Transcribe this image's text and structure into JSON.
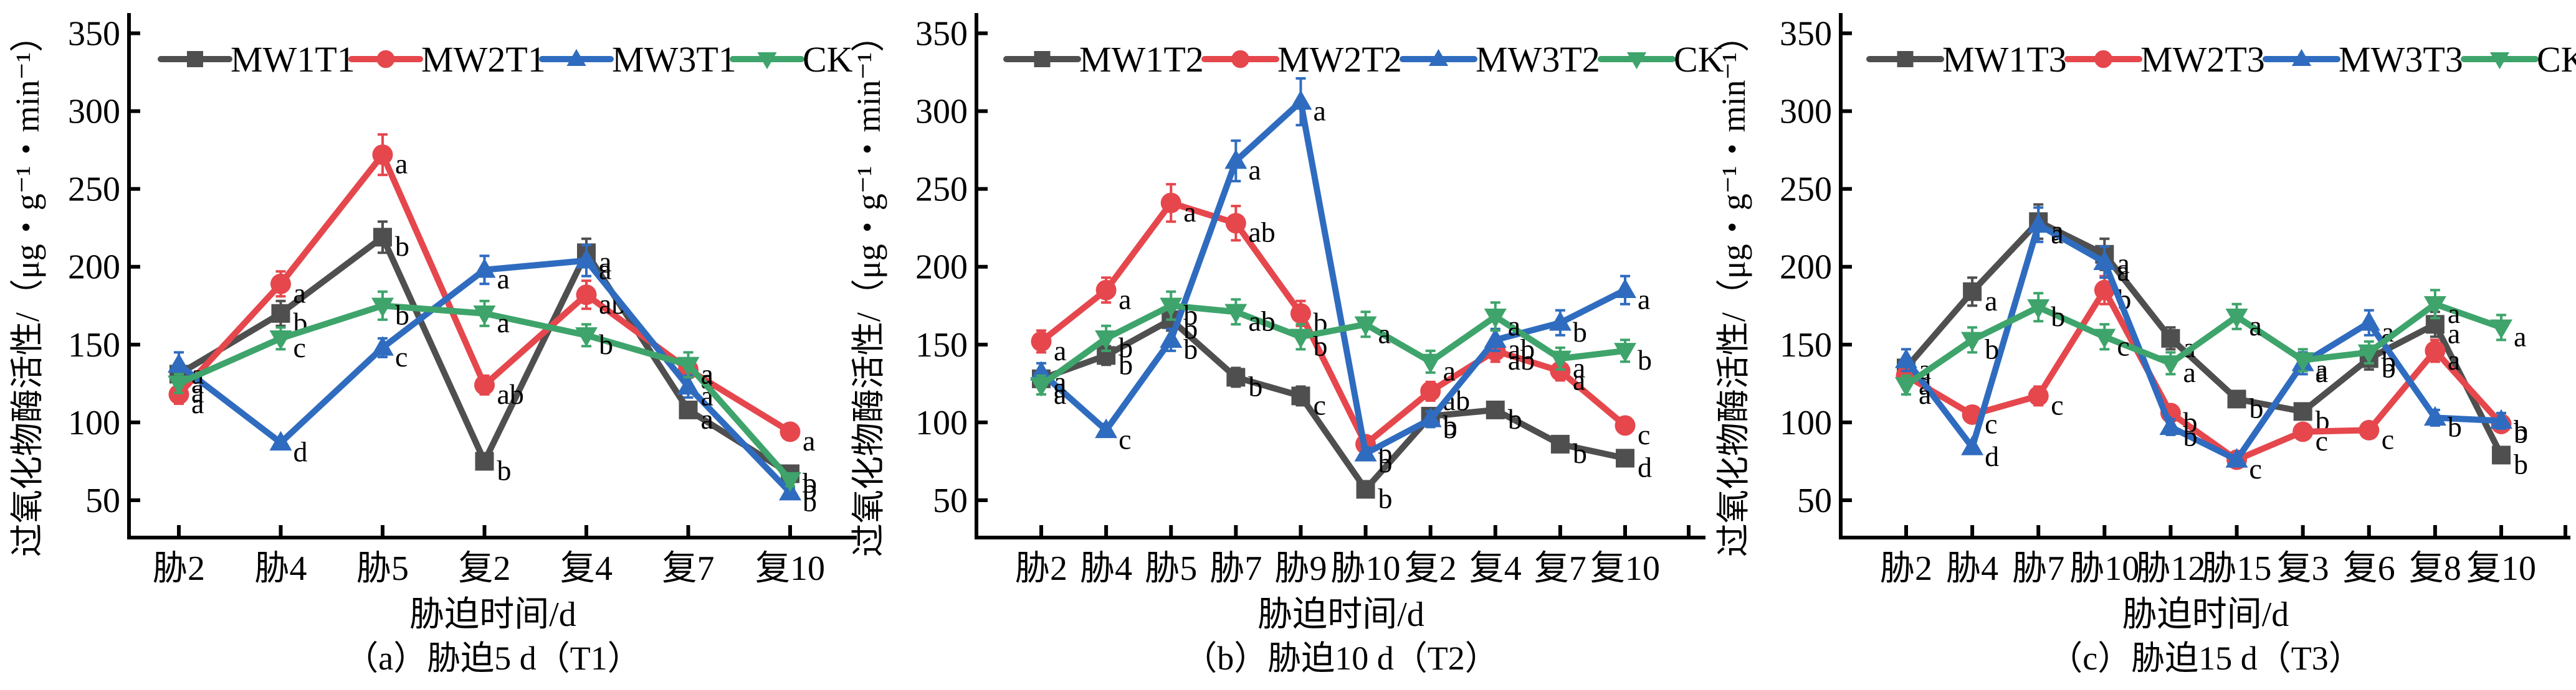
{
  "figure": {
    "colors": {
      "MW1": "#4f4f4f",
      "MW2": "#e5474d",
      "MW3": "#2f6cbf",
      "CK": "#3ea46b",
      "axis": "#000000"
    }
  },
  "chart_data": [
    {
      "type": "line",
      "panel_id": "a",
      "caption": "（a）胁迫5 d（T1）",
      "xlabel": "胁迫时间/d",
      "ylabel": "过氧化物酶活性/（μg・g⁻¹・min⁻¹）",
      "ylim": [
        26,
        363
      ],
      "yticks": [
        50,
        100,
        150,
        200,
        250,
        300,
        350
      ],
      "legend_position": "top",
      "grid": false,
      "categories": [
        "胁2",
        "胁4",
        "胁5",
        "复2",
        "复4",
        "复7",
        "复10"
      ],
      "series": [
        {
          "name": "MW1T1",
          "key": "MW1",
          "marker": "square",
          "values": [
            131,
            170,
            219,
            75,
            209,
            108,
            67
          ],
          "errors": [
            5,
            8,
            10,
            3,
            9,
            5,
            3
          ],
          "letters": [
            "a",
            "b",
            "b",
            "b",
            "a",
            "a",
            "b"
          ]
        },
        {
          "name": "MW2T1",
          "key": "MW2",
          "marker": "circle",
          "values": [
            118,
            189,
            272,
            124,
            182,
            134,
            94
          ],
          "errors": [
            6,
            8,
            13,
            6,
            9,
            5,
            3
          ],
          "letters": [
            "a",
            "a",
            "a",
            "ab",
            "ab",
            "a",
            "a"
          ]
        },
        {
          "name": "MW3T1",
          "key": "MW3",
          "marker": "triangle-up",
          "values": [
            137,
            87,
            148,
            198,
            204,
            123,
            55
          ],
          "errors": [
            8,
            3,
            6,
            9,
            10,
            7,
            3
          ],
          "letters": [
            "a",
            "d",
            "c",
            "a",
            "a",
            "a",
            "b"
          ]
        },
        {
          "name": "CK",
          "key": "CK",
          "marker": "triangle-down",
          "values": [
            125,
            154,
            175,
            170,
            156,
            137,
            63
          ],
          "errors": [
            6,
            7,
            9,
            8,
            7,
            8,
            4
          ],
          "letters": [
            "a",
            "c",
            "b",
            "a",
            "b",
            "a",
            "b"
          ]
        }
      ]
    },
    {
      "type": "line",
      "panel_id": "b",
      "caption": "（b）胁迫10 d（T2）",
      "xlabel": "胁迫时间/d",
      "ylabel": "过氧化物酶活性/（μg・g⁻¹・min⁻¹）",
      "ylim": [
        26,
        363
      ],
      "yticks": [
        50,
        100,
        150,
        200,
        250,
        300,
        350
      ],
      "legend_position": "top",
      "grid": false,
      "categories": [
        "胁2",
        "胁4",
        "胁5",
        "胁7",
        "胁9",
        "胁10",
        "复2",
        "复4",
        "复7",
        "复10"
      ],
      "series": [
        {
          "name": "MW1T2",
          "key": "MW1",
          "marker": "square",
          "values": [
            128,
            143,
            166,
            129,
            117,
            57,
            104,
            108,
            86,
            77
          ],
          "errors": [
            5,
            6,
            7,
            6,
            6,
            3,
            5,
            5,
            4,
            3
          ],
          "letters": [
            "a",
            "b",
            "b",
            "b",
            "c",
            "b",
            "b",
            "b",
            "b",
            "d"
          ]
        },
        {
          "name": "MW2T2",
          "key": "MW2",
          "marker": "circle",
          "values": [
            152,
            185,
            241,
            228,
            170,
            86,
            120,
            146,
            133,
            98
          ],
          "errors": [
            7,
            8,
            12,
            11,
            8,
            4,
            6,
            7,
            6,
            4
          ],
          "letters": [
            "a",
            "a",
            "a",
            "ab",
            "b",
            "b",
            "ab",
            "ab",
            "a",
            "c"
          ]
        },
        {
          "name": "MW3T2",
          "key": "MW3",
          "marker": "triangle-up",
          "values": [
            132,
            95,
            153,
            268,
            306,
            80,
            102,
            153,
            164,
            185
          ],
          "errors": [
            6,
            4,
            7,
            13,
            15,
            4,
            5,
            7,
            8,
            9
          ],
          "letters": [
            "a",
            "c",
            "b",
            "a",
            "a",
            "b",
            "b",
            "ab",
            "b",
            "a"
          ]
        },
        {
          "name": "CK",
          "key": "CK",
          "marker": "triangle-down",
          "values": [
            124,
            154,
            175,
            171,
            155,
            163,
            139,
            168,
            141,
            146
          ],
          "errors": [
            6,
            8,
            9,
            8,
            8,
            8,
            7,
            9,
            7,
            7
          ],
          "letters": [
            "a",
            "b",
            "b",
            "ab",
            "b",
            "a",
            "a",
            "a",
            "a",
            "b"
          ]
        }
      ]
    },
    {
      "type": "line",
      "panel_id": "c",
      "caption": "（c）胁迫15 d（T3）",
      "xlabel": "胁迫时间/d",
      "ylabel": "过氧化物酶活性/（μg・g⁻¹・min⁻¹）",
      "ylim": [
        26,
        363
      ],
      "yticks": [
        50,
        100,
        150,
        200,
        250,
        300,
        350
      ],
      "legend_position": "top",
      "grid": false,
      "categories": [
        "胁2",
        "胁4",
        "胁7",
        "胁10",
        "胁12",
        "胁15",
        "复3",
        "复6",
        "复8",
        "复10"
      ],
      "series": [
        {
          "name": "MW1T3",
          "key": "MW1",
          "marker": "square",
          "values": [
            135,
            184,
            229,
            208,
            154,
            115,
            107,
            141,
            163,
            79
          ],
          "errors": [
            6,
            9,
            11,
            10,
            7,
            5,
            5,
            7,
            8,
            3
          ],
          "letters": [
            "a",
            "a",
            "a",
            "a",
            "a",
            "b",
            "b",
            "b",
            "a",
            "b"
          ]
        },
        {
          "name": "MW2T3",
          "key": "MW2",
          "marker": "circle",
          "values": [
            130,
            105,
            117,
            185,
            106,
            76,
            94,
            95,
            146,
            99
          ],
          "errors": [
            6,
            5,
            6,
            9,
            5,
            3,
            4,
            4,
            7,
            4
          ],
          "letters": [
            "a",
            "c",
            "c",
            "b",
            "b",
            "c",
            "c",
            "c",
            "a",
            "b"
          ]
        },
        {
          "name": "MW3T3",
          "key": "MW3",
          "marker": "triangle-up",
          "values": [
            140,
            84,
            227,
            203,
            97,
            76,
            138,
            164,
            103,
            101
          ],
          "errors": [
            7,
            4,
            11,
            10,
            5,
            3,
            7,
            8,
            5,
            5
          ],
          "letters": [
            "a",
            "d",
            "a",
            "a",
            "b",
            "c",
            "a",
            "a",
            "b",
            "b"
          ]
        },
        {
          "name": "CK",
          "key": "CK",
          "marker": "triangle-down",
          "values": [
            124,
            153,
            174,
            155,
            138,
            168,
            140,
            145,
            176,
            161
          ],
          "errors": [
            6,
            8,
            9,
            8,
            7,
            8,
            7,
            7,
            9,
            8
          ],
          "letters": [
            "a",
            "b",
            "b",
            "c",
            "a",
            "a",
            "a",
            "b",
            "a",
            "a"
          ]
        }
      ]
    }
  ]
}
